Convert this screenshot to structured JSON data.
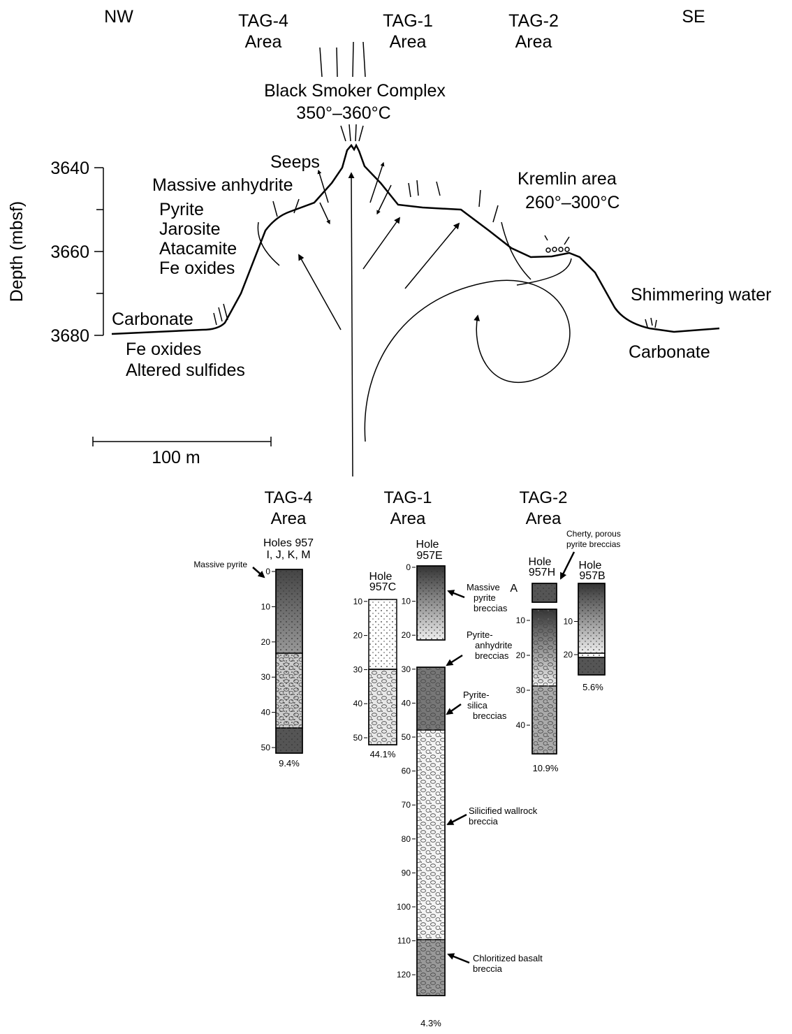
{
  "compass": {
    "left": "NW",
    "right": "SE"
  },
  "top_areas": [
    [
      "TAG-4",
      "Area"
    ],
    [
      "TAG-1",
      "Area"
    ],
    [
      "TAG-2",
      "Area"
    ]
  ],
  "labels": {
    "black_smoker": [
      "Black Smoker Complex",
      "350°–360°C"
    ],
    "seeps": "Seeps",
    "massive_anhydrite": "Massive anhydrite",
    "minerals": [
      "Pyrite",
      "Jarosite",
      "Atacamite",
      "Fe oxides"
    ],
    "kremlin": [
      "Kremlin area",
      "260°–300°C"
    ],
    "shimmering": "Shimmering water",
    "carbonate_left": "Carbonate",
    "left_base": [
      "Fe oxides",
      "Altered sulfides"
    ],
    "carbonate_right": "Carbonate"
  },
  "depth_axis": {
    "label": "Depth (mbsf)",
    "ticks": [
      3640,
      3660,
      3680
    ]
  },
  "scale_bar": "100 m",
  "bottom_areas": [
    [
      "TAG-4",
      "Area"
    ],
    [
      "TAG-1",
      "Area"
    ],
    [
      "TAG-2",
      "Area"
    ]
  ],
  "cores": [
    {
      "hole": [
        "Holes 957",
        "I, J, K, M"
      ],
      "ticks": [
        0,
        10,
        20,
        30,
        40,
        50
      ],
      "recovery": "9.4%"
    },
    {
      "hole": [
        "Hole",
        "957C"
      ],
      "ticks": [
        10,
        20,
        30,
        40,
        50
      ],
      "recovery": "44.1%"
    },
    {
      "hole": [
        "Hole",
        "957E"
      ],
      "ticks": [
        0,
        10,
        20,
        30,
        40,
        50,
        60,
        70,
        80,
        90,
        100,
        110,
        120
      ],
      "recovery": "4.3%"
    },
    {
      "hole": [
        "Hole",
        "957H"
      ],
      "ticks": [
        10,
        20,
        30,
        40
      ],
      "recovery": "10.9%"
    },
    {
      "hole": [
        "Hole",
        "957B"
      ],
      "ticks": [
        10,
        20
      ],
      "recovery": "5.6%"
    }
  ],
  "piece_label": "A",
  "annotations": {
    "massive_pyrite": "Massive pyrite",
    "cherty": [
      "Cherty, porous",
      "pyrite breccias"
    ],
    "massive_pyrite_breccias": [
      "Massive",
      "pyrite",
      "breccias"
    ],
    "pyrite_anhydrite": [
      "Pyrite-",
      "anhydrite",
      "breccias"
    ],
    "pyrite_silica": [
      "Pyrite-",
      "silica",
      "breccias"
    ],
    "silicified": [
      "Silicified wallrock",
      "breccia"
    ],
    "chloritized": [
      "Chloritized basalt",
      "breccia"
    ]
  }
}
